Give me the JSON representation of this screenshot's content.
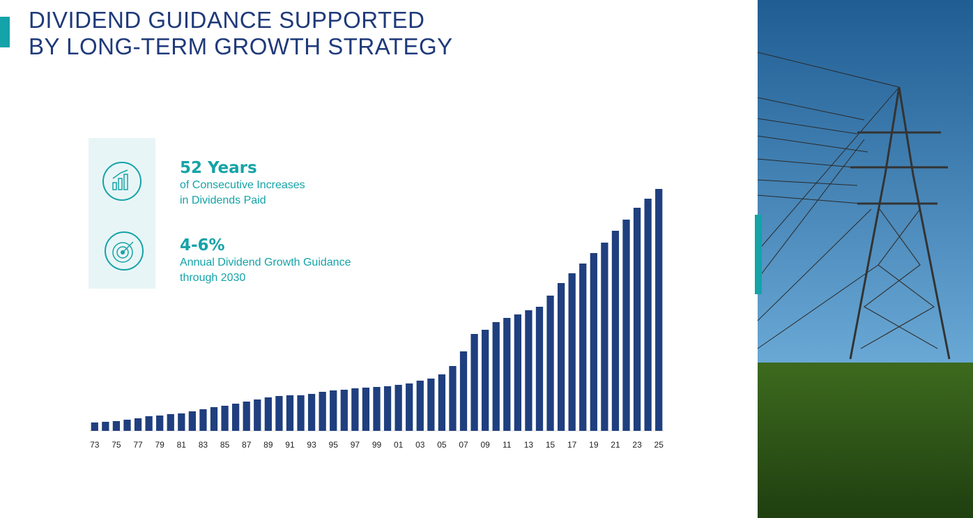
{
  "header": {
    "title_lines": [
      "DIVIDEND GUIDANCE SUPPORTED",
      "BY LONG-TERM GROWTH STRATEGY"
    ]
  },
  "stats": [
    {
      "headline": "52 Years",
      "lines": [
        "of Consecutive Increases",
        "in Dividends Paid"
      ]
    },
    {
      "headline": "4-6%",
      "lines": [
        "Annual Dividend Growth Guidance",
        "through 2030"
      ]
    }
  ],
  "chart_data": {
    "type": "bar",
    "categories": [
      "73",
      null,
      "75",
      null,
      "77",
      null,
      "79",
      null,
      "81",
      null,
      "83",
      null,
      "85",
      null,
      "87",
      null,
      "89",
      null,
      "91",
      null,
      "93",
      null,
      "95",
      null,
      "97",
      null,
      "99",
      null,
      "01",
      null,
      "03",
      null,
      "05",
      null,
      "07",
      null,
      "09",
      null,
      "11",
      null,
      "13",
      null,
      "15",
      null,
      "17",
      null,
      "19",
      null,
      "21",
      null,
      "23",
      null,
      "25"
    ],
    "values": [
      12,
      13,
      14,
      16,
      18,
      21,
      22,
      24,
      25,
      28,
      31,
      34,
      36,
      39,
      42,
      45,
      48,
      50,
      51,
      51,
      53,
      56,
      58,
      59,
      61,
      62,
      63,
      64,
      66,
      68,
      72,
      75,
      81,
      93,
      114,
      139,
      145,
      156,
      162,
      167,
      173,
      178,
      194,
      212,
      226,
      240,
      255,
      270,
      287,
      303,
      320,
      333,
      347
    ],
    "color": "#1f3f7f",
    "ylim": [
      0,
      350
    ]
  }
}
